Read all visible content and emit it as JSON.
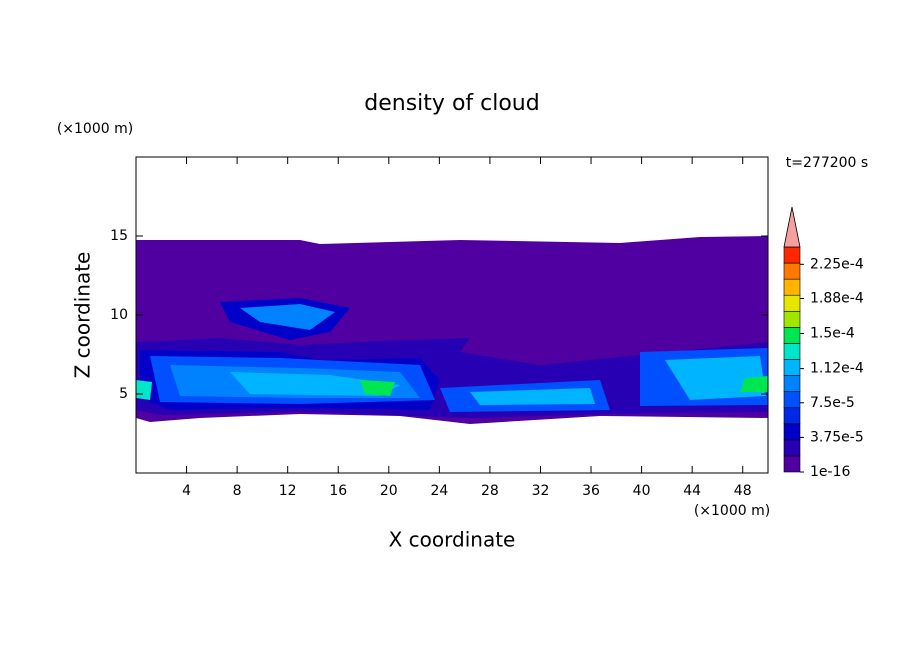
{
  "chart_data": {
    "type": "contour",
    "title": "density of cloud",
    "xlabel": "X coordinate",
    "ylabel": "Z coordinate",
    "xunit": "(×1000 m)",
    "yunit": "(×1000 m)",
    "annotation": "t=277200 s",
    "xlim": [
      0,
      50
    ],
    "xticks": [
      4,
      8,
      12,
      16,
      20,
      24,
      28,
      32,
      36,
      40,
      44,
      48
    ],
    "ylim": [
      0,
      20
    ],
    "yticks": [
      5,
      10,
      15
    ],
    "colorbar": {
      "clim": [
        0,
        0.00024375
      ],
      "ticks": [
        {
          "value": 1e-16,
          "label": "1e-16"
        },
        {
          "value": 3.75e-05,
          "label": "3.75e-5"
        },
        {
          "value": 7.5e-05,
          "label": "7.5e-5"
        },
        {
          "value": 0.000112,
          "label": "1.12e-4"
        },
        {
          "value": 0.00015,
          "label": "1.5e-4"
        },
        {
          "value": 0.000188,
          "label": "1.88e-4"
        },
        {
          "value": 0.000225,
          "label": "2.25e-4"
        }
      ],
      "colors": [
        "#5000a0",
        "#2800b4",
        "#0000c8",
        "#0028e6",
        "#0050ff",
        "#0082ff",
        "#00b4ff",
        "#00e6c8",
        "#00e650",
        "#a0e600",
        "#e6e600",
        "#ffb400",
        "#ff7800",
        "#ff2800"
      ],
      "extend_color": "#f4a0a0"
    }
  }
}
